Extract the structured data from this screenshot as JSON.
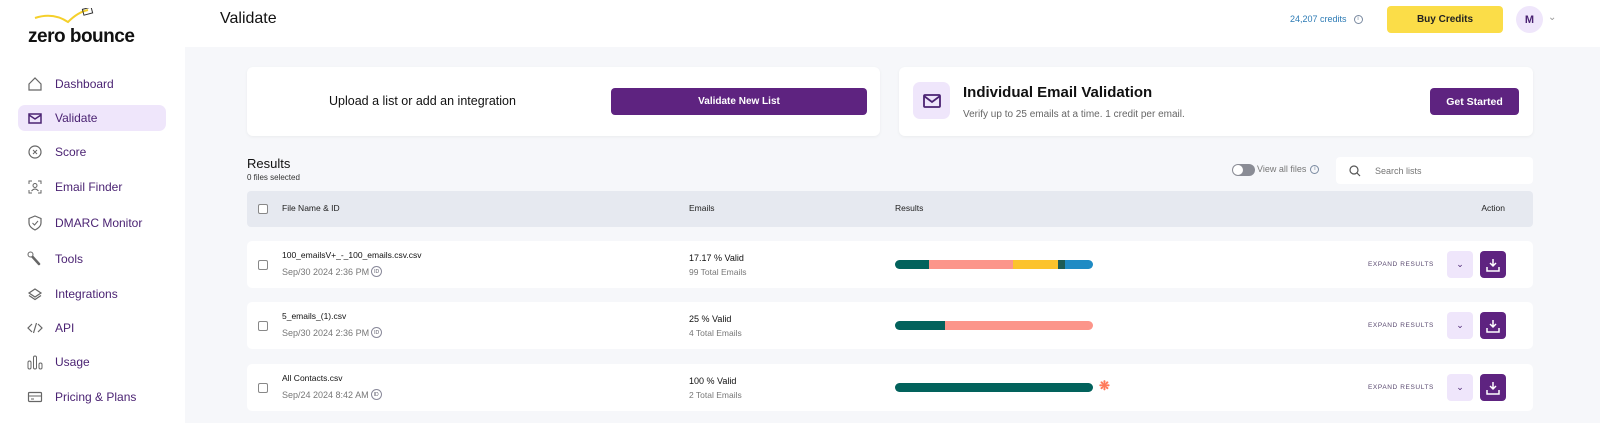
{
  "brand": {
    "name": "zero bounce"
  },
  "sidebar": {
    "items": [
      {
        "label": "Dashboard",
        "icon": "home-icon"
      },
      {
        "label": "Validate",
        "icon": "envelope-icon",
        "active": true
      },
      {
        "label": "Score",
        "icon": "score-icon"
      },
      {
        "label": "Email Finder",
        "icon": "user-scan-icon"
      },
      {
        "label": "DMARC Monitor",
        "icon": "shield-check-icon"
      },
      {
        "label": "Tools",
        "icon": "wrench-icon"
      },
      {
        "label": "Integrations",
        "icon": "layers-icon"
      },
      {
        "label": "API",
        "icon": "code-icon"
      },
      {
        "label": "Usage",
        "icon": "bar-chart-icon"
      },
      {
        "label": "Pricing & Plans",
        "icon": "credit-card-icon"
      }
    ]
  },
  "header": {
    "title": "Validate",
    "credits": "24,207 credits",
    "buy_label": "Buy Credits",
    "avatar_initial": "M"
  },
  "upload_card": {
    "text": "Upload a list or add an integration",
    "button": "Validate New List"
  },
  "individual_card": {
    "title": "Individual Email Validation",
    "subtitle": "Verify up to 25 emails at a time. 1 credit per email.",
    "button": "Get Started"
  },
  "results": {
    "title": "Results",
    "files_selected": "0 files selected",
    "view_all_label": "View all files",
    "search_placeholder": "Search lists",
    "columns": {
      "file": "File Name & ID",
      "emails": "Emails",
      "results": "Results",
      "action": "Action"
    },
    "expand_label": "EXPAND RESULTS",
    "rows": [
      {
        "file": "100_emailsV+_-_100_emails.csv.csv",
        "date": "Sep/30 2024 2:36 PM",
        "valid": "17.17 % Valid",
        "total": "99 Total Emails",
        "segments": [
          {
            "pct": 17.17,
            "color": "#02625c"
          },
          {
            "pct": 42.4,
            "color": "#fc958a"
          },
          {
            "pct": 22.7,
            "color": "#fcc32c"
          },
          {
            "pct": 3.5,
            "color": "#1d5c55"
          },
          {
            "pct": 14.23,
            "color": "#1f8bc4"
          }
        ],
        "hubspot": false
      },
      {
        "file": "5_emails_(1).csv",
        "date": "Sep/30 2024 2:36 PM",
        "valid": "25 % Valid",
        "total": "4 Total Emails",
        "segments": [
          {
            "pct": 25,
            "color": "#02625c"
          },
          {
            "pct": 75,
            "color": "#fc958a"
          }
        ],
        "hubspot": false
      },
      {
        "file": "All Contacts.csv",
        "date": "Sep/24 2024 8:42 AM",
        "valid": "100 % Valid",
        "total": "2 Total Emails",
        "segments": [
          {
            "pct": 100,
            "color": "#02625c"
          }
        ],
        "hubspot": true
      }
    ]
  }
}
